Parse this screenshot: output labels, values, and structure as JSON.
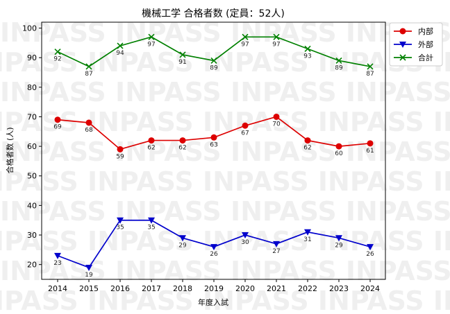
{
  "chart_data": {
    "type": "line",
    "title": "機械工学 合格者数 (定員：52人)",
    "xlabel": "年度入試",
    "ylabel": "合格者数 (人)",
    "categories": [
      "2014",
      "2015",
      "2016",
      "2017",
      "2018",
      "2019",
      "2020",
      "2021",
      "2022",
      "2023",
      "2024"
    ],
    "ylim": [
      15,
      102
    ],
    "yticks": [
      20,
      30,
      40,
      50,
      60,
      70,
      80,
      90,
      100
    ],
    "grid": false,
    "legend": "top-right",
    "series": [
      {
        "name": "内部",
        "color": "#dd0000",
        "marker": "circle",
        "values": [
          69,
          68,
          59,
          62,
          62,
          63,
          67,
          70,
          62,
          60,
          61
        ]
      },
      {
        "name": "外部",
        "color": "#0000cc",
        "marker": "triangle-down",
        "values": [
          23,
          19,
          35,
          35,
          29,
          26,
          30,
          27,
          31,
          29,
          26
        ]
      },
      {
        "name": "合計",
        "color": "#008000",
        "marker": "x",
        "values": [
          92,
          87,
          94,
          97,
          91,
          89,
          97,
          97,
          93,
          89,
          87
        ]
      }
    ]
  },
  "watermark": "INPASS INPASS INPASS INPASS INPASS"
}
